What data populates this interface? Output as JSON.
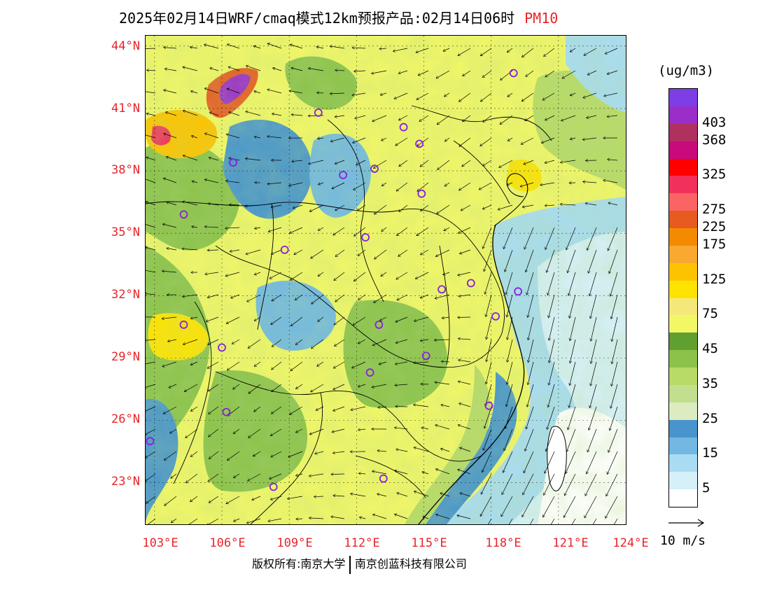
{
  "title": {
    "text": "2025年02月14日WRF/cmaq模式12km预报产品:02月14日06时",
    "variable": "PM10",
    "variable_color": "#e8242a"
  },
  "map": {
    "lat_labels": [
      "44°N",
      "41°N",
      "38°N",
      "35°N",
      "32°N",
      "29°N",
      "26°N",
      "23°N"
    ],
    "lon_labels": [
      "103°E",
      "106°E",
      "109°E",
      "112°E",
      "115°E",
      "118°E",
      "121°E",
      "124°E"
    ],
    "lat_range": [
      21,
      44.5
    ],
    "lon_range": [
      102.6,
      124
    ],
    "cities": [
      {
        "lon": 119.0,
        "lat": 42.7
      },
      {
        "lon": 110.3,
        "lat": 40.8
      },
      {
        "lon": 114.1,
        "lat": 40.1
      },
      {
        "lon": 114.8,
        "lat": 39.3
      },
      {
        "lon": 106.5,
        "lat": 38.4
      },
      {
        "lon": 111.4,
        "lat": 37.8
      },
      {
        "lon": 112.8,
        "lat": 38.1
      },
      {
        "lon": 114.9,
        "lat": 36.9
      },
      {
        "lon": 104.3,
        "lat": 35.9
      },
      {
        "lon": 112.4,
        "lat": 34.8
      },
      {
        "lon": 108.8,
        "lat": 34.2
      },
      {
        "lon": 115.8,
        "lat": 32.3
      },
      {
        "lon": 117.1,
        "lat": 32.6
      },
      {
        "lon": 119.2,
        "lat": 32.2
      },
      {
        "lon": 118.2,
        "lat": 31.0
      },
      {
        "lon": 104.3,
        "lat": 30.6
      },
      {
        "lon": 113.0,
        "lat": 30.6
      },
      {
        "lon": 106.0,
        "lat": 29.5
      },
      {
        "lon": 115.1,
        "lat": 29.1
      },
      {
        "lon": 112.6,
        "lat": 28.3
      },
      {
        "lon": 106.2,
        "lat": 26.4
      },
      {
        "lon": 117.9,
        "lat": 26.7
      },
      {
        "lon": 102.8,
        "lat": 25.0
      },
      {
        "lon": 108.3,
        "lat": 22.8
      },
      {
        "lon": 113.2,
        "lat": 23.2
      }
    ]
  },
  "legend": {
    "unit": "(ug/m3)",
    "colors": [
      "#ffffff",
      "#d6f0fa",
      "#a9dcf3",
      "#72b8e3",
      "#4894cc",
      "#dcebc0",
      "#c2df90",
      "#b8da66",
      "#8cc24a",
      "#5fa030",
      "#f2f766",
      "#f5e87a",
      "#ffe300",
      "#fdc300",
      "#f9a830",
      "#f38a00",
      "#e85a20",
      "#fb6464",
      "#f2305a",
      "#ff0000",
      "#c80a7c",
      "#b03060",
      "#9a2ec8",
      "#7e3ee6"
    ],
    "labels": [
      "5",
      "15",
      "25",
      "35",
      "45",
      "75",
      "125",
      "175",
      "225",
      "275",
      "325",
      "368",
      "403"
    ],
    "label_index": [
      1,
      3,
      5,
      7,
      9,
      11,
      13,
      15,
      16,
      17,
      19,
      21,
      22
    ]
  },
  "reference_vector": "10 m/s",
  "footer": {
    "left": "版权所有:南京大学",
    "right": "南京创蓝科技有限公司"
  }
}
